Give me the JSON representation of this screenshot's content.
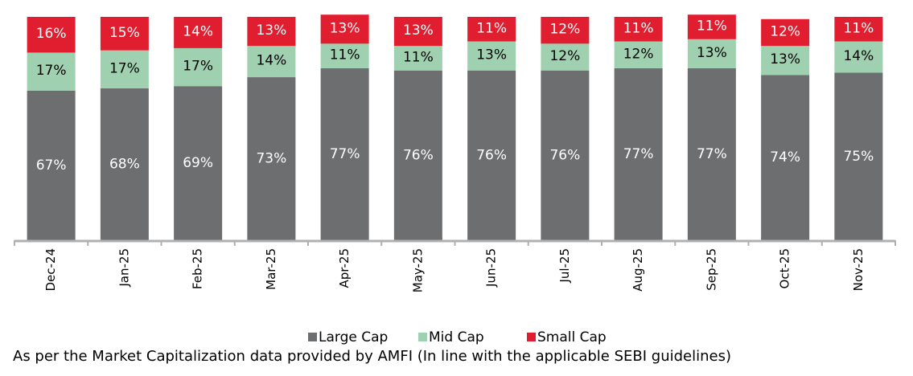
{
  "chart_data": {
    "type": "bar",
    "stacked": true,
    "categories": [
      "Dec-24",
      "Jan-25",
      "Feb-25",
      "Mar-25",
      "Apr-25",
      "May-25",
      "Jun-25",
      "Jul-25",
      "Aug-25",
      "Sep-25",
      "Oct-25",
      "Nov-25"
    ],
    "series": [
      {
        "name": "Large Cap",
        "color": "#6d6e70",
        "label_color": "#ffffff",
        "values": [
          67,
          68,
          69,
          73,
          77,
          76,
          76,
          76,
          77,
          77,
          74,
          75
        ]
      },
      {
        "name": "Mid Cap",
        "color": "#9fd1b1",
        "label_color": "#000000",
        "values": [
          17,
          17,
          17,
          14,
          11,
          11,
          13,
          12,
          12,
          13,
          13,
          14
        ]
      },
      {
        "name": "Small Cap",
        "color": "#e01e2f",
        "label_color": "#ffffff",
        "values": [
          16,
          15,
          14,
          13,
          13,
          13,
          11,
          12,
          11,
          11,
          12,
          11
        ]
      }
    ],
    "value_format": "{v}%",
    "ylim": [
      0,
      100
    ],
    "y_axis_visible": false,
    "grid": false,
    "legend": "bottom",
    "xlabel": "",
    "ylabel": ""
  },
  "footnote": "As per the Market Capitalization data provided by AMFI (In line with the applicable SEBI guidelines)"
}
